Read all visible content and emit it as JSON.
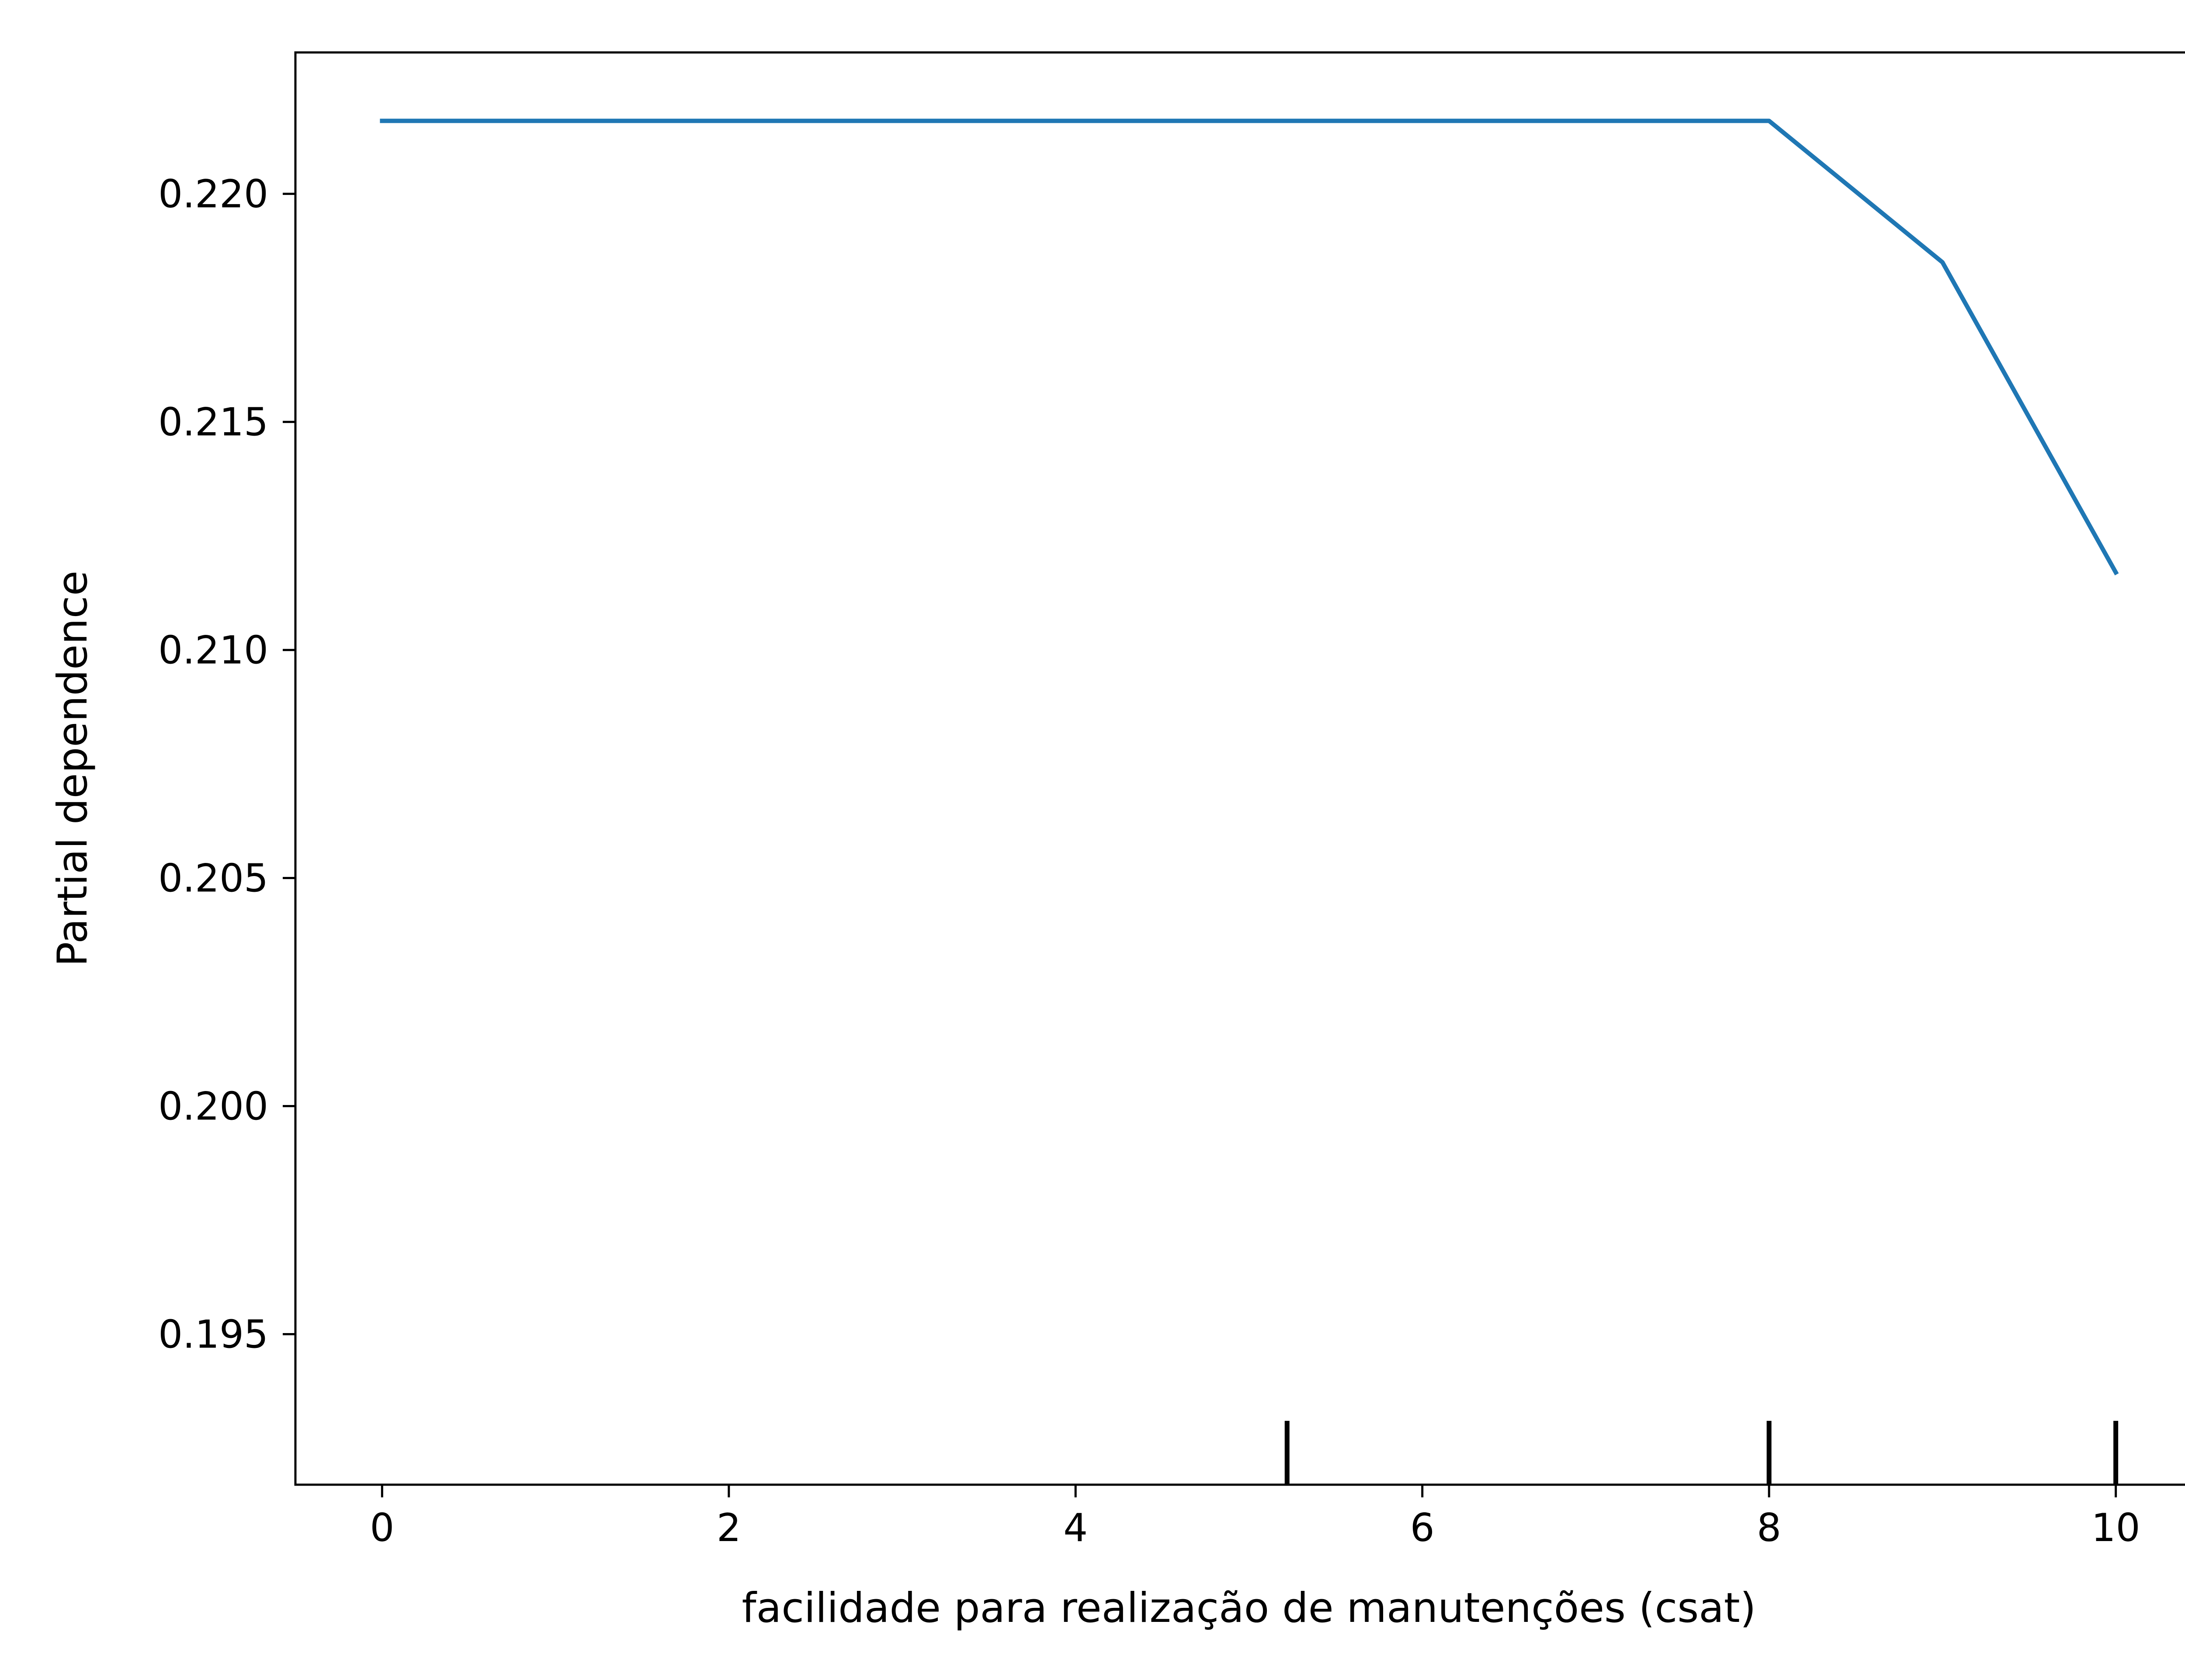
{
  "chart_data": {
    "type": "line",
    "title": "",
    "xlabel": "facilidade para realização de manutenções (csat)",
    "ylabel": "Partial dependence",
    "xlim": [
      -0.5,
      10.5
    ],
    "ylim": [
      0.1917,
      0.2231
    ],
    "x_ticks": [
      0,
      2,
      4,
      6,
      8,
      10
    ],
    "x_tick_labels": [
      "0",
      "2",
      "4",
      "6",
      "8",
      "10"
    ],
    "y_ticks": [
      0.195,
      0.2,
      0.205,
      0.21,
      0.215,
      0.22
    ],
    "y_tick_labels": [
      "0.195",
      "0.200",
      "0.205",
      "0.210",
      "0.215",
      "0.220"
    ],
    "grid": false,
    "series": [
      {
        "color": "#1f77b4",
        "x": [
          0,
          1,
          2,
          3,
          4,
          5,
          6,
          7,
          8,
          9,
          10
        ],
        "y": [
          0.2216,
          0.2216,
          0.2216,
          0.2216,
          0.2216,
          0.2216,
          0.2216,
          0.2216,
          0.2216,
          0.2185,
          0.2117
        ]
      }
    ],
    "rug": {
      "color": "#000000",
      "x": [
        5.22,
        8,
        10
      ]
    }
  }
}
